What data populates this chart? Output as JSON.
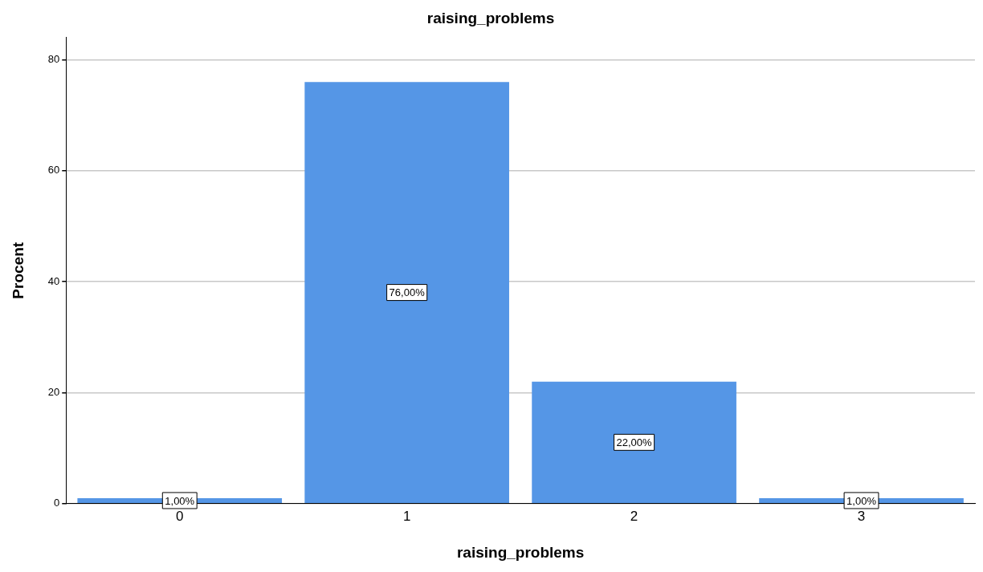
{
  "chart_data": {
    "type": "bar",
    "title": "raising_problems",
    "xlabel": "raising_problems",
    "ylabel": "Procent",
    "categories": [
      "0",
      "1",
      "2",
      "3"
    ],
    "values": [
      1,
      76,
      22,
      1
    ],
    "color": "#5596e6",
    "value_labels": [
      "1,00%",
      "76,00%",
      "22,00%",
      "1,00%"
    ],
    "ylim": [
      0,
      84
    ],
    "yticks": [
      0,
      20,
      40,
      60,
      80
    ],
    "grid": "y",
    "legend": false
  }
}
